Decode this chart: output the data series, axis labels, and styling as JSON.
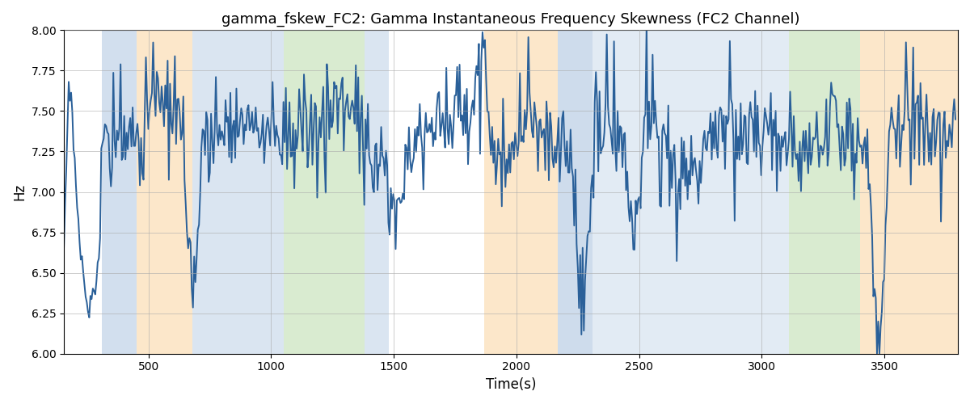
{
  "title": "gamma_fskew_FC2: Gamma Instantaneous Frequency Skewness (FC2 Channel)",
  "xlabel": "Time(s)",
  "ylabel": "Hz",
  "ylim": [
    6.0,
    8.0
  ],
  "xlim": [
    155,
    3800
  ],
  "yticks": [
    6.0,
    6.25,
    6.5,
    6.75,
    7.0,
    7.25,
    7.5,
    7.75,
    8.0
  ],
  "xticks": [
    500,
    1000,
    1500,
    2000,
    2500,
    3000,
    3500
  ],
  "line_color": "#2a6099",
  "line_width": 1.4,
  "bg_bands": [
    {
      "xmin": 310,
      "xmax": 450,
      "color": "#aec6e0",
      "alpha": 0.55
    },
    {
      "xmin": 450,
      "xmax": 680,
      "color": "#fad5a0",
      "alpha": 0.55
    },
    {
      "xmin": 680,
      "xmax": 1050,
      "color": "#aec6e0",
      "alpha": 0.45
    },
    {
      "xmin": 1050,
      "xmax": 1380,
      "color": "#b5d9a3",
      "alpha": 0.5
    },
    {
      "xmin": 1380,
      "xmax": 1480,
      "color": "#aec6e0",
      "alpha": 0.45
    },
    {
      "xmin": 1870,
      "xmax": 2170,
      "color": "#fad5a0",
      "alpha": 0.55
    },
    {
      "xmin": 2170,
      "xmax": 2310,
      "color": "#aec6e0",
      "alpha": 0.6
    },
    {
      "xmin": 2310,
      "xmax": 2780,
      "color": "#aec6e0",
      "alpha": 0.35
    },
    {
      "xmin": 2780,
      "xmax": 3110,
      "color": "#aec6e0",
      "alpha": 0.35
    },
    {
      "xmin": 3110,
      "xmax": 3400,
      "color": "#b5d9a3",
      "alpha": 0.5
    },
    {
      "xmin": 3400,
      "xmax": 3800,
      "color": "#fad5a0",
      "alpha": 0.55
    }
  ],
  "seed": 17,
  "n_points": 740,
  "time_start": 155,
  "time_end": 3790
}
